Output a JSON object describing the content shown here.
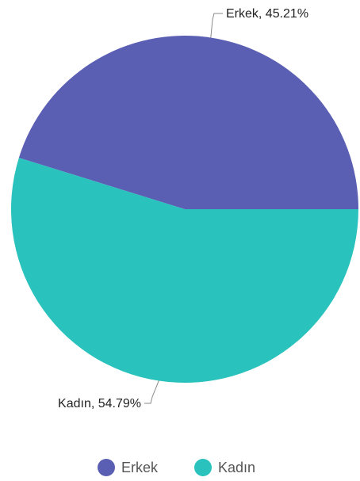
{
  "chart_data": {
    "type": "pie",
    "title": "",
    "categories": [
      "Erkek",
      "Kadın"
    ],
    "values": [
      45.21,
      54.79
    ],
    "unit": "%",
    "colors": [
      "#5b5fb3",
      "#2ac2bd"
    ],
    "data_labels": [
      "Erkek, 45.21%",
      "Kadın, 54.79%"
    ],
    "legend": {
      "position": "bottom",
      "items": [
        "Erkek",
        "Kadın"
      ]
    }
  }
}
